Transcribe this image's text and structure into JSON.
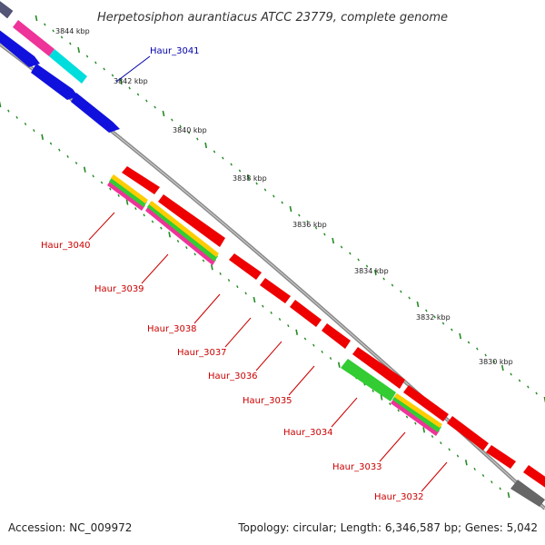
{
  "title": "Herpetosiphon aurantiacus ATCC 23779, complete genome",
  "footer": {
    "accession": "Accession: NC_009972",
    "summary": "Topology: circular; Length: 6,346,587 bp; Genes: 5,042"
  },
  "kbp_labels": [
    "3844 kbp",
    "3842 kbp",
    "3840 kbp",
    "3838 kbp",
    "3836 kbp",
    "3834 kbp",
    "3832 kbp",
    "3830 kbp"
  ],
  "forward_genes": [
    {
      "label": "Haur_3041",
      "color": "#00008b"
    }
  ],
  "reverse_genes": [
    {
      "label": "Haur_3040",
      "color": "#cc0000"
    },
    {
      "label": "Haur_3039",
      "color": "#cc0000"
    },
    {
      "label": "Haur_3038",
      "color": "#cc0000"
    },
    {
      "label": "Haur_3037",
      "color": "#cc0000"
    },
    {
      "label": "Haur_3036",
      "color": "#cc0000"
    },
    {
      "label": "Haur_3035",
      "color": "#cc0000"
    },
    {
      "label": "Haur_3034",
      "color": "#cc0000"
    },
    {
      "label": "Haur_3033",
      "color": "#cc0000"
    },
    {
      "label": "Haur_3032",
      "color": "#cc0000"
    }
  ],
  "colors": {
    "cds_forward": "#0000ee",
    "cds_reverse": "#ee0000",
    "trna_or_rna": "#22cc22",
    "backbone": "#808080",
    "tick": "#228b22",
    "pink": "#ee3399",
    "cyan": "#00dddd",
    "slate": "#555577"
  }
}
